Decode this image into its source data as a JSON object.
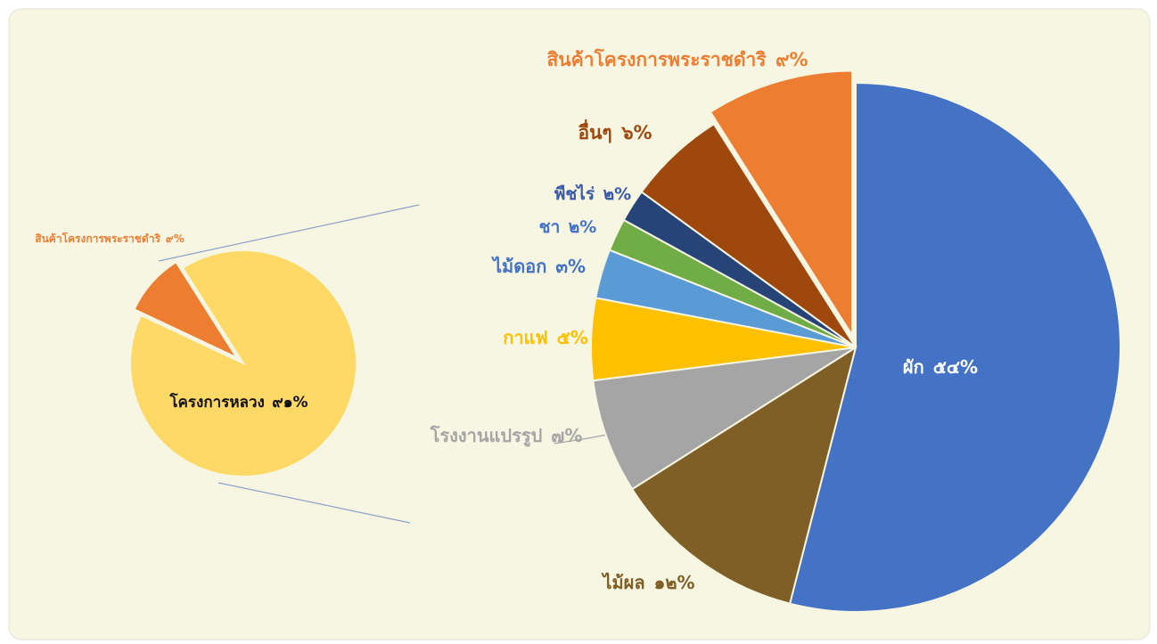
{
  "chart_data": [
    {
      "type": "pie",
      "categories": [
        "โครงการหลวง",
        "สินค้าโครงการพระราชดำริ"
      ],
      "values": [
        91,
        9
      ],
      "value_labels": [
        "๙๑%",
        "๙%"
      ],
      "colors": [
        "#ffd966",
        "#ed7d31"
      ]
    },
    {
      "type": "pie",
      "categories": [
        "ผัก",
        "ไม้ผล",
        "โรงงานแปรรูป",
        "กาแฟ",
        "ไม้ดอก",
        "ชา",
        "พืชไร่",
        "อื่นๆ",
        "สินค้าโครงการพระราชดำริ"
      ],
      "values": [
        54,
        12,
        7,
        5,
        3,
        2,
        2,
        6,
        9
      ],
      "value_labels": [
        "๕๔%",
        "๑๒%",
        "๗%",
        "๕%",
        "๓%",
        "๒%",
        "๒%",
        "๖%",
        "๙%"
      ],
      "colors": [
        "#4472c4",
        "#7f5f26",
        "#a5a5a5",
        "#ffc000",
        "#5b9bd5",
        "#70ad47",
        "#264478",
        "#9e480e",
        "#ed7d31"
      ]
    }
  ]
}
